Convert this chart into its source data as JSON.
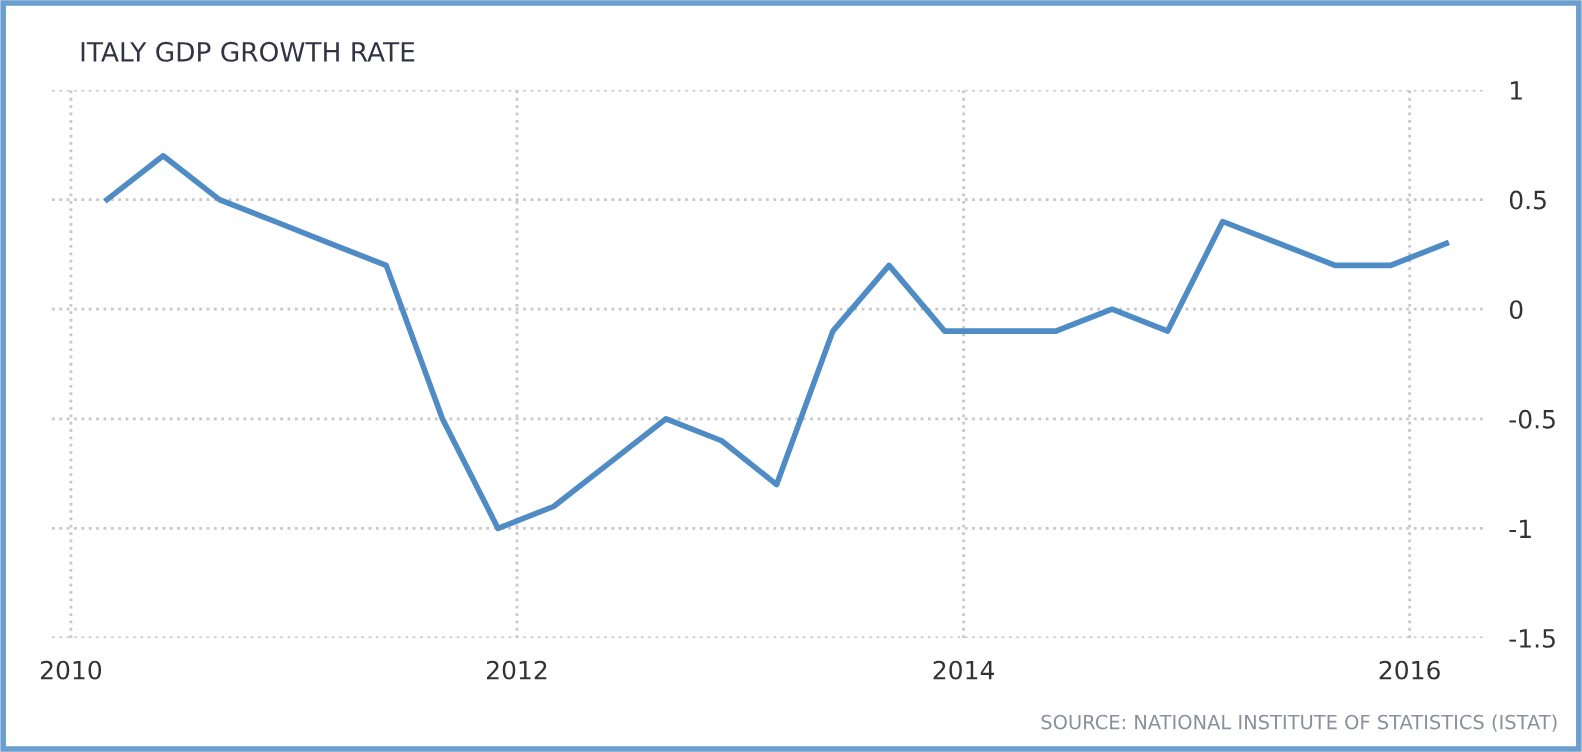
{
  "chart_data": {
    "type": "line",
    "title": "ITALY GDP GROWTH RATE",
    "x": [
      "2010-03-01",
      "2010-06-01",
      "2010-09-01",
      "2010-12-01",
      "2011-03-01",
      "2011-06-01",
      "2011-09-01",
      "2011-12-01",
      "2012-03-01",
      "2012-06-01",
      "2012-09-01",
      "2012-12-01",
      "2013-03-01",
      "2013-06-01",
      "2013-09-01",
      "2013-12-01",
      "2014-03-01",
      "2014-06-01",
      "2014-09-01",
      "2014-12-01",
      "2015-03-01",
      "2015-06-01",
      "2015-09-01",
      "2015-12-01",
      "2016-03-01"
    ],
    "series": [
      {
        "color": "#4f8bc4",
        "values": [
          0.5,
          0.7,
          0.5,
          0.4,
          0.3,
          0.2,
          -0.5,
          -1.0,
          -0.9,
          -0.7,
          -0.5,
          -0.6,
          -0.8,
          -0.1,
          0.2,
          -0.1,
          -0.1,
          -0.1,
          0.0,
          -0.1,
          0.4,
          0.3,
          0.2,
          0.2,
          0.3
        ]
      }
    ],
    "xlim": [
      "2009-12-01",
      "2016-05-05"
    ],
    "xticks": [
      {
        "value": "2010-01-01",
        "label": "2010"
      },
      {
        "value": "2012-01-01",
        "label": "2012"
      },
      {
        "value": "2014-01-01",
        "label": "2014"
      },
      {
        "value": "2016-01-01",
        "label": "2016"
      }
    ],
    "ylim": [
      -1.5,
      1
    ],
    "yticks": [
      {
        "value": -1.5,
        "label": "-1.5"
      },
      {
        "value": -1,
        "label": "-1"
      },
      {
        "value": -0.5,
        "label": "-0.5"
      },
      0,
      0.5,
      1
    ],
    "grid": true,
    "marker": "none",
    "line_style": "solid",
    "annotations": [
      "SOURCE: NATIONAL INSTITUTE OF STATISTICS (ISTAT)"
    ]
  }
}
